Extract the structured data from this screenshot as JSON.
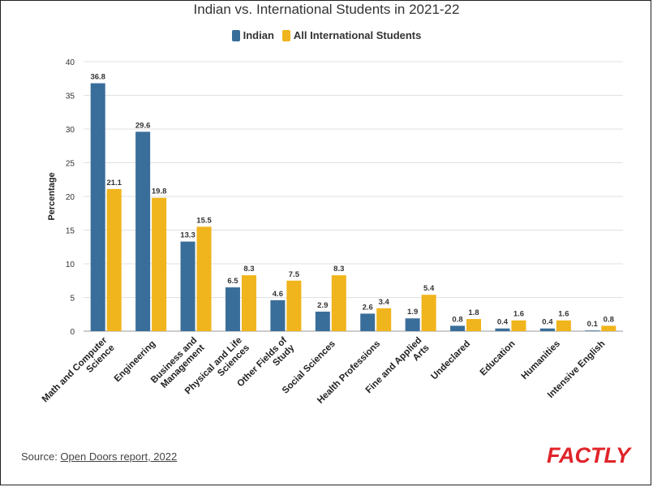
{
  "colors": {
    "indian": "#3a6e9a",
    "international": "#f0b41c",
    "grid": "#e0e0e0",
    "axis": "#333333",
    "logo": "#e0242a"
  },
  "chart_data": {
    "type": "bar",
    "title": "Indian vs. International Students in 2021-22",
    "ylabel": "Percentage",
    "xlabel": "",
    "ylim": [
      0,
      40
    ],
    "yticks": [
      0,
      5,
      10,
      15,
      20,
      25,
      30,
      35,
      40
    ],
    "grid": true,
    "legend_position": "top-center",
    "categories": [
      "Math and Computer Science",
      "Engineering",
      "Business and Management",
      "Physical and Life Sciences",
      "Other Fields of Study",
      "Social Sciences",
      "Health Professions",
      "Fine and Applied Arts",
      "Undeclared",
      "Education",
      "Humanities",
      "Intensive English"
    ],
    "category_lines": [
      [
        "Math and Computer",
        "Science"
      ],
      [
        "Engineering"
      ],
      [
        "Business and",
        "Management"
      ],
      [
        "Physical and Life",
        "Sciences"
      ],
      [
        "Other Fields of",
        "Study"
      ],
      [
        "Social Sciences"
      ],
      [
        "Health Professions"
      ],
      [
        "Fine and Applied",
        "Arts"
      ],
      [
        "Undeclared"
      ],
      [
        "Education"
      ],
      [
        "Humanities"
      ],
      [
        "Intensive English"
      ]
    ],
    "series": [
      {
        "name": "Indian",
        "values": [
          36.8,
          29.6,
          13.3,
          6.5,
          4.6,
          2.9,
          2.6,
          1.9,
          0.8,
          0.4,
          0.4,
          0.1
        ]
      },
      {
        "name": "All International Students",
        "values": [
          21.1,
          19.8,
          15.5,
          8.3,
          7.5,
          8.3,
          3.4,
          5.4,
          1.8,
          1.6,
          1.6,
          0.8
        ]
      }
    ]
  },
  "legend": {
    "indian": "Indian",
    "international": "All International Students"
  },
  "footer": {
    "source_prefix": "Source: ",
    "source_link": "Open Doors report, 2022",
    "logo": "FACTLY"
  }
}
